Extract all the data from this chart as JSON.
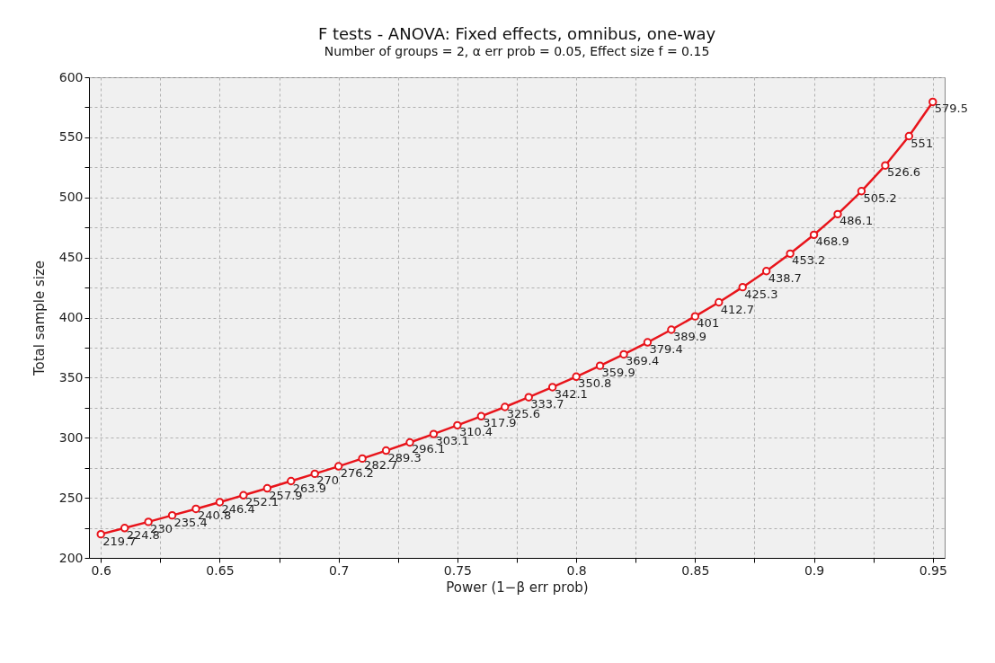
{
  "chart_data": {
    "type": "line",
    "title": "F tests - ANOVA: Fixed effects, omnibus, one-way",
    "subtitle": "Number of groups = 2, α err prob = 0.05, Effect size f = 0.15",
    "xlabel": "Power (1−β err prob)",
    "ylabel": "Total sample size",
    "x": [
      0.6,
      0.61,
      0.62,
      0.63,
      0.64,
      0.65,
      0.66,
      0.67,
      0.68,
      0.69,
      0.7,
      0.71,
      0.72,
      0.73,
      0.74,
      0.75,
      0.76,
      0.77,
      0.78,
      0.79,
      0.8,
      0.81,
      0.82,
      0.83,
      0.84,
      0.85,
      0.86,
      0.87,
      0.88,
      0.89,
      0.9,
      0.91,
      0.92,
      0.93,
      0.94,
      0.95
    ],
    "series": [
      {
        "color": "#e8141b",
        "values": [
          219.7,
          224.8,
          230,
          235.4,
          240.8,
          246.4,
          252.1,
          257.9,
          263.9,
          270,
          276.2,
          282.7,
          289.3,
          296.1,
          303.1,
          310.4,
          317.9,
          325.6,
          333.7,
          342.1,
          350.8,
          359.9,
          369.4,
          379.4,
          389.9,
          401,
          412.7,
          425.3,
          438.7,
          453.2,
          468.9,
          486.1,
          505.2,
          526.6,
          551,
          579.5
        ]
      }
    ],
    "xlim": [
      0.595,
      0.955
    ],
    "xticks": [
      0.6,
      {
        "value": 0.625,
        "label": null
      },
      0.65,
      {
        "value": 0.675,
        "label": null
      },
      0.7,
      {
        "value": 0.725,
        "label": null
      },
      0.75,
      {
        "value": 0.775,
        "label": null
      },
      0.8,
      {
        "value": 0.825,
        "label": null
      },
      0.85,
      {
        "value": 0.875,
        "label": null
      },
      0.9,
      {
        "value": 0.925,
        "label": null
      },
      0.95
    ],
    "ylim": [
      200,
      600
    ],
    "yticks": [
      200,
      {
        "value": 225,
        "label": null
      },
      250,
      {
        "value": 275,
        "label": null
      },
      300,
      {
        "value": 325,
        "label": null
      },
      350,
      {
        "value": 375,
        "label": null
      },
      400,
      {
        "value": 425,
        "label": null
      },
      450,
      {
        "value": 475,
        "label": null
      },
      500,
      {
        "value": 525,
        "label": null
      },
      550,
      {
        "value": 575,
        "label": null
      },
      600
    ],
    "grid": true,
    "marker": "circle",
    "line_style": "solid",
    "data_labels": true
  }
}
